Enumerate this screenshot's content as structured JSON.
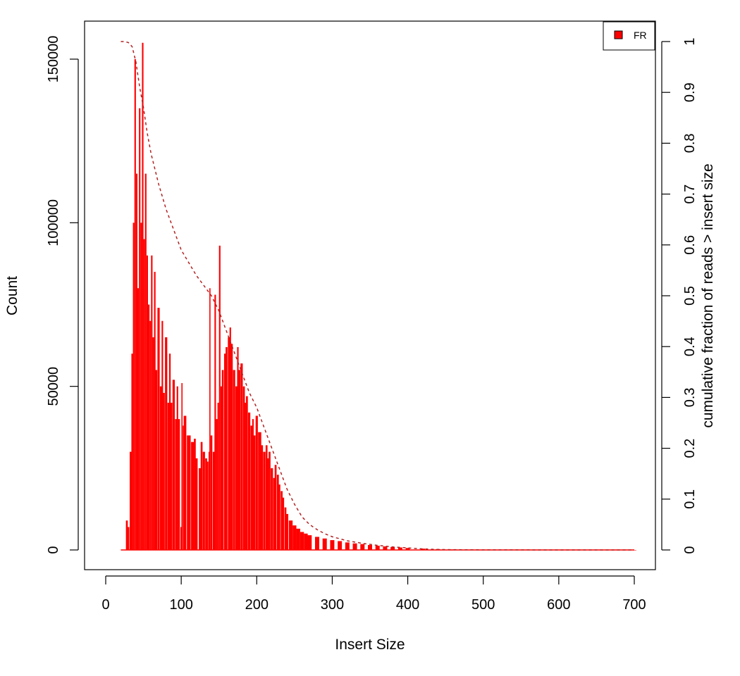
{
  "chart_data": {
    "type": "bar",
    "title": "",
    "xlabel": "Insert Size",
    "ylabel": "Count",
    "y2label": "cumulative fraction of reads > insert size",
    "xlim": [
      0,
      700
    ],
    "ylim": [
      0,
      150000
    ],
    "y2lim": [
      0,
      1
    ],
    "x_ticks": [
      "0",
      "100",
      "200",
      "300",
      "400",
      "500",
      "600",
      "700"
    ],
    "y_ticks": [
      "0",
      "50000",
      "100000",
      "150000"
    ],
    "y2_ticks": [
      "0",
      "0.1",
      "0.2",
      "0.3",
      "0.4",
      "0.5",
      "0.6",
      "0.7",
      "0.8",
      "0.9",
      "1"
    ],
    "legend": {
      "position": "top-right",
      "entries": [
        {
          "label": "FR",
          "color": "#ff0000"
        }
      ]
    },
    "grid": false,
    "colors": {
      "bars": "#ff0000",
      "cumulative_line": "#b22222"
    },
    "series": [
      {
        "name": "FR",
        "kind": "bar",
        "x": [
          20,
          25,
          28,
          30,
          33,
          35,
          37,
          39,
          41,
          43,
          45,
          47,
          49,
          51,
          53,
          55,
          57,
          59,
          61,
          63,
          65,
          67,
          70,
          73,
          75,
          77,
          80,
          83,
          85,
          87,
          90,
          93,
          95,
          97,
          100,
          101,
          103,
          105,
          110,
          115,
          118,
          120,
          125,
          127,
          130,
          133,
          135,
          137,
          138,
          140,
          143,
          145,
          147,
          149,
          151,
          153,
          155,
          158,
          160,
          163,
          165,
          167,
          170,
          173,
          175,
          177,
          180,
          183,
          185,
          187,
          190,
          193,
          195,
          197,
          200,
          203,
          205,
          207,
          210,
          213,
          215,
          217,
          220,
          223,
          225,
          228,
          230,
          233,
          235,
          238,
          240,
          245,
          250,
          255,
          260,
          265,
          270,
          280,
          290,
          300,
          310,
          320,
          330,
          340,
          350,
          360,
          370,
          380,
          390,
          400,
          420,
          440,
          460,
          480,
          500,
          550,
          600,
          650,
          700
        ],
        "values": [
          0,
          0,
          9000,
          7000,
          30000,
          60000,
          100000,
          150000,
          115000,
          80000,
          135000,
          100000,
          155000,
          95000,
          115000,
          90000,
          75000,
          70000,
          90000,
          65000,
          85000,
          55000,
          74000,
          50000,
          70000,
          48000,
          65000,
          45000,
          60000,
          45000,
          52000,
          40000,
          50000,
          40000,
          7000,
          51000,
          38000,
          41000,
          35000,
          33000,
          34000,
          28000,
          25000,
          33000,
          30000,
          28000,
          27000,
          30000,
          80000,
          35000,
          30000,
          78000,
          40000,
          45000,
          93000,
          50000,
          55000,
          60000,
          62000,
          65000,
          68000,
          63000,
          55000,
          50000,
          62000,
          55000,
          57000,
          50000,
          45000,
          47000,
          42000,
          38000,
          40000,
          35000,
          41000,
          36000,
          36000,
          32000,
          30000,
          32000,
          28000,
          30000,
          25000,
          22000,
          26000,
          23000,
          20000,
          18000,
          16000,
          13000,
          11000,
          9000,
          7500,
          6500,
          5500,
          5000,
          4500,
          4000,
          3500,
          3000,
          2700,
          2300,
          2000,
          1800,
          1500,
          1300,
          1100,
          900,
          750,
          600,
          400,
          250,
          150,
          100,
          70,
          40,
          20,
          10,
          5
        ]
      },
      {
        "name": "",
        "kind": "line",
        "axis": "right",
        "line_style": "dashed",
        "x": [
          20,
          25,
          30,
          35,
          40,
          45,
          50,
          55,
          60,
          65,
          70,
          80,
          90,
          100,
          110,
          120,
          130,
          140,
          150,
          160,
          170,
          180,
          190,
          200,
          210,
          220,
          230,
          240,
          250,
          260,
          270,
          280,
          290,
          300,
          320,
          340,
          360,
          380,
          400,
          420,
          440,
          460,
          500,
          550,
          600,
          650,
          700
        ],
        "values": [
          1.0,
          1.0,
          0.998,
          0.99,
          0.96,
          0.91,
          0.87,
          0.82,
          0.78,
          0.75,
          0.72,
          0.67,
          0.63,
          0.59,
          0.565,
          0.54,
          0.52,
          0.5,
          0.47,
          0.43,
          0.39,
          0.35,
          0.31,
          0.28,
          0.24,
          0.2,
          0.16,
          0.12,
          0.09,
          0.065,
          0.05,
          0.04,
          0.032,
          0.026,
          0.018,
          0.013,
          0.009,
          0.006,
          0.004,
          0.002,
          0.001,
          0.0005,
          0.0002,
          0.0001,
          5e-05,
          2e-05,
          0.0
        ]
      }
    ]
  }
}
